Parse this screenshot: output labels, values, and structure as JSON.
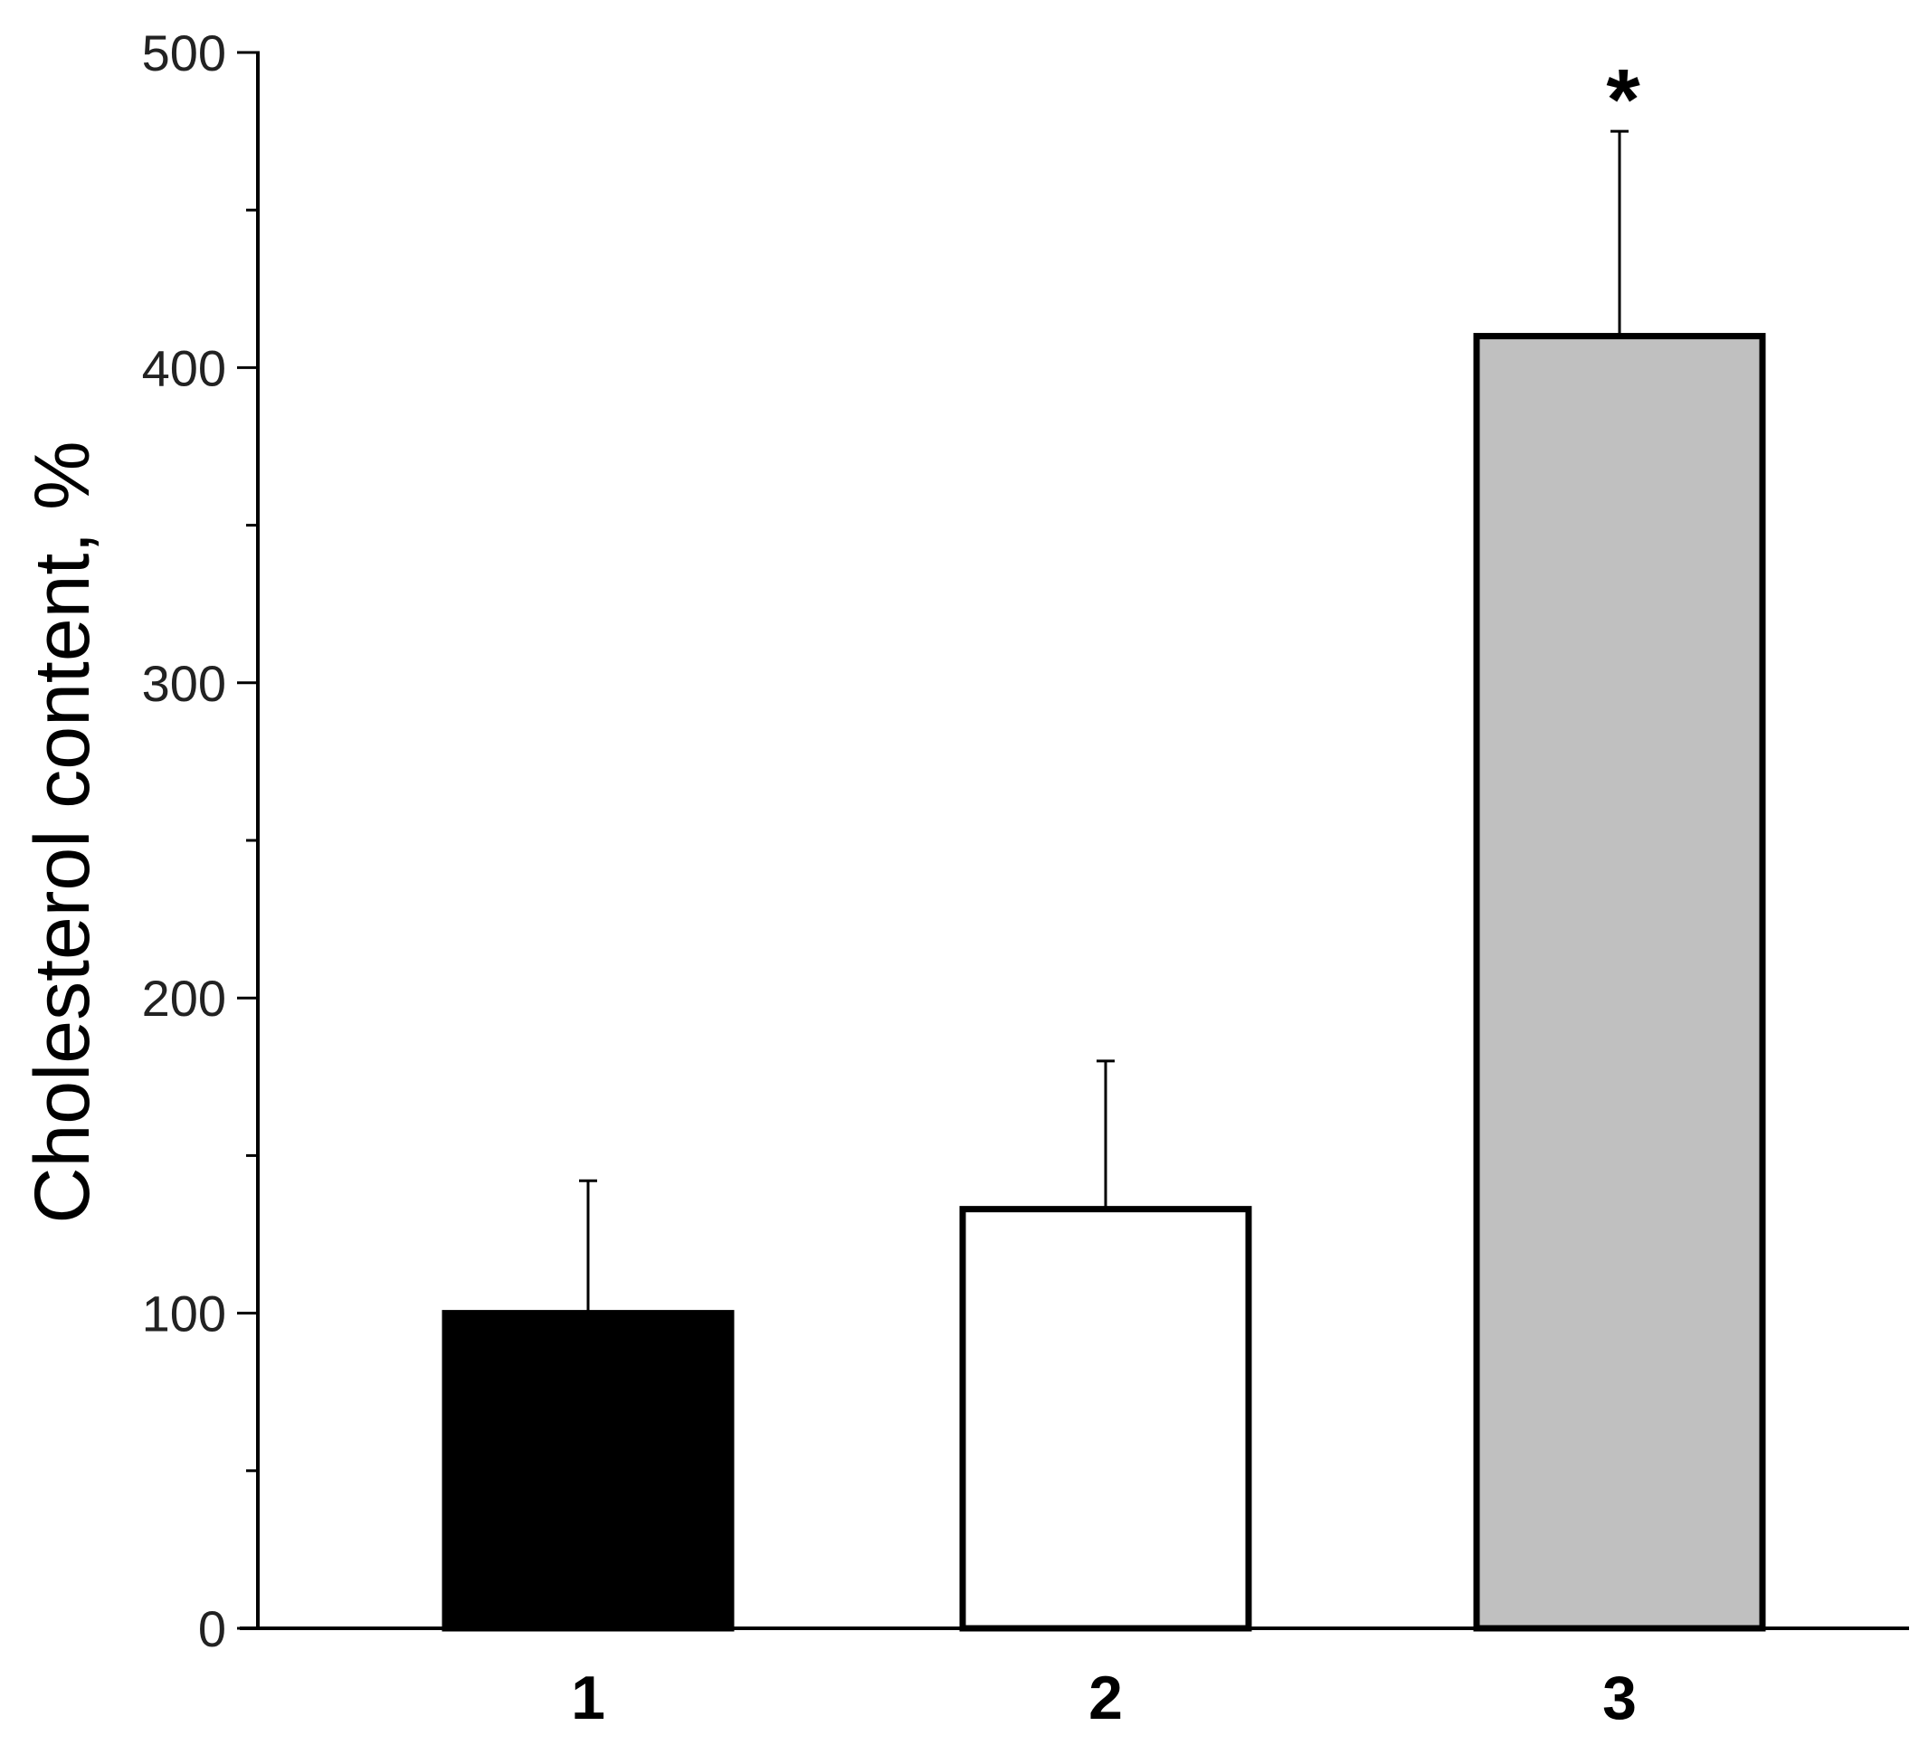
{
  "chart_data": {
    "type": "bar",
    "title": "",
    "xlabel": "",
    "ylabel": "Cholesterol content, %",
    "ylim": [
      0,
      500
    ],
    "yticks_major": [
      0,
      100,
      200,
      300,
      400,
      500
    ],
    "yticks_minor": [
      50,
      150,
      250,
      350,
      450
    ],
    "categories": [
      "1",
      "2",
      "3"
    ],
    "values": [
      100,
      133,
      410
    ],
    "errors": [
      42,
      47,
      65
    ],
    "bar_colors": [
      "#000000",
      "#ffffff",
      "#c0c0c0"
    ],
    "bar_edge_color": "#000000",
    "annotations": [
      {
        "category": "3",
        "text": "*"
      }
    ],
    "grid": false,
    "legend": "none"
  }
}
